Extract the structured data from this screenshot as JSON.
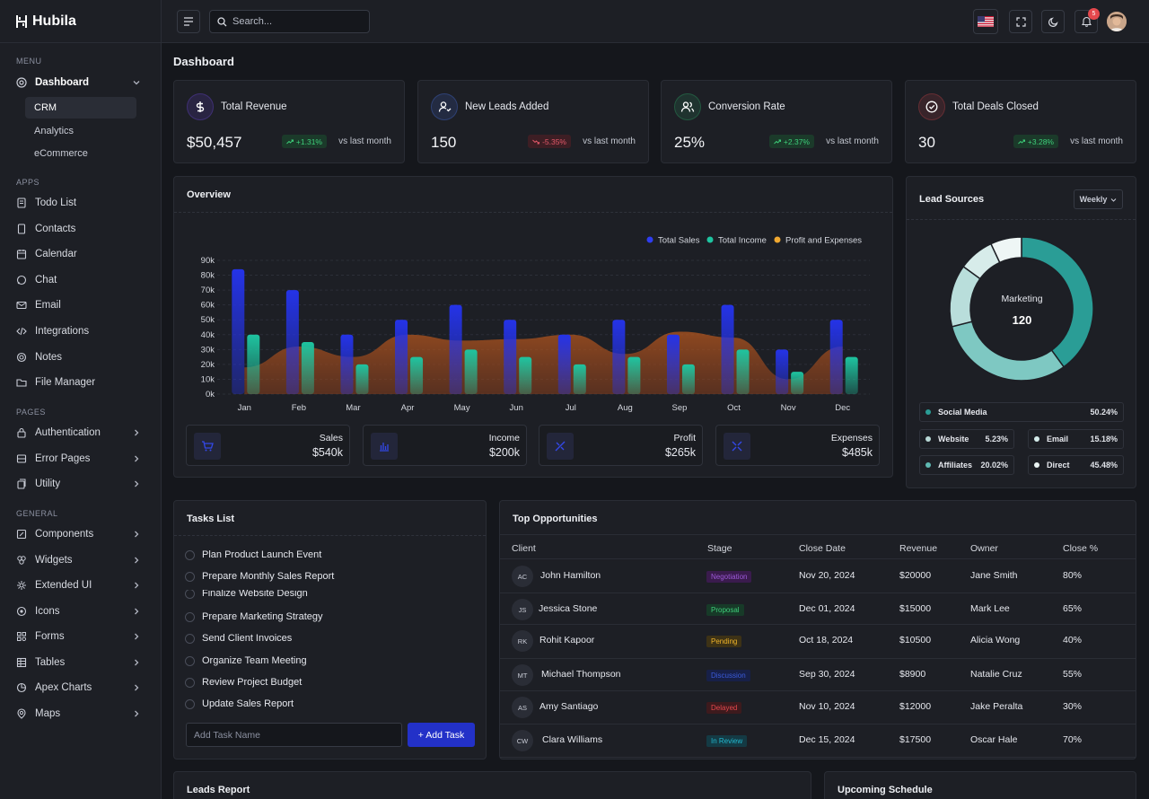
{
  "brand": {
    "name": "Hubila"
  },
  "sidebar": {
    "sections": [
      "MENU",
      "APPS",
      "PAGES",
      "GENERAL"
    ],
    "dashboard": {
      "label": "Dashboard",
      "icon": "dashboard-icon"
    },
    "dashboard_sub": [
      "CRM",
      "Analytics",
      "eCommerce"
    ],
    "apps": [
      {
        "label": "Todo List",
        "icon": "todo-icon"
      },
      {
        "label": "Contacts",
        "icon": "contacts-icon"
      },
      {
        "label": "Calendar",
        "icon": "calendar-icon"
      },
      {
        "label": "Chat",
        "icon": "chat-icon"
      },
      {
        "label": "Email",
        "icon": "email-icon"
      },
      {
        "label": "Integrations",
        "icon": "code-icon"
      },
      {
        "label": "Notes",
        "icon": "notes-icon"
      },
      {
        "label": "File Manager",
        "icon": "folder-icon"
      }
    ],
    "pages": [
      {
        "label": "Authentication",
        "icon": "lock-icon"
      },
      {
        "label": "Error Pages",
        "icon": "error-icon"
      },
      {
        "label": "Utility",
        "icon": "utility-icon"
      }
    ],
    "general": [
      {
        "label": "Components",
        "icon": "components-icon"
      },
      {
        "label": "Widgets",
        "icon": "widgets-icon"
      },
      {
        "label": "Extended UI",
        "icon": "extended-icon"
      },
      {
        "label": "Icons",
        "icon": "icons-icon"
      },
      {
        "label": "Forms",
        "icon": "forms-icon"
      },
      {
        "label": "Tables",
        "icon": "tables-icon"
      },
      {
        "label": "Apex Charts",
        "icon": "charts-icon"
      },
      {
        "label": "Maps",
        "icon": "map-pin-icon"
      }
    ]
  },
  "topbar": {
    "search_placeholder": "Search...",
    "notification_count": "5"
  },
  "page": {
    "title": "Dashboard"
  },
  "stats": [
    {
      "label": "Total Revenue",
      "value": "$50,457",
      "change": "+1.31%",
      "trend": "up",
      "vs": "vs last month",
      "icon": "dollar-icon",
      "color": "#7b4dff"
    },
    {
      "label": "New Leads Added",
      "value": "150",
      "change": "-5.35%",
      "trend": "down",
      "vs": "vs last month",
      "icon": "user-add-icon",
      "color": "#4d7cff"
    },
    {
      "label": "Conversion Rate",
      "value": "25%",
      "change": "+2.37%",
      "trend": "up",
      "vs": "vs last month",
      "icon": "users-icon",
      "color": "#2fbf71"
    },
    {
      "label": "Total Deals Closed",
      "value": "30",
      "change": "+3.28%",
      "trend": "up",
      "vs": "vs last month",
      "icon": "check-circle-icon",
      "color": "#e5484d"
    }
  ],
  "overview": {
    "title": "Overview",
    "summary": [
      {
        "label": "Sales",
        "value": "$540k",
        "icon": "cart-icon"
      },
      {
        "label": "Income",
        "value": "$200k",
        "icon": "bar-chart-icon"
      },
      {
        "label": "Profit",
        "value": "$265k",
        "icon": "profit-icon"
      },
      {
        "label": "Expenses",
        "value": "$485k",
        "icon": "expenses-icon"
      }
    ]
  },
  "chart_data": {
    "type": "bar",
    "title": "Overview",
    "categories": [
      "Jan",
      "Feb",
      "Mar",
      "Apr",
      "May",
      "Jun",
      "Jul",
      "Aug",
      "Sep",
      "Oct",
      "Nov",
      "Dec"
    ],
    "ylim": [
      0,
      90
    ],
    "y_ticks": [
      "0k",
      "10k",
      "20k",
      "30k",
      "40k",
      "50k",
      "60k",
      "70k",
      "80k",
      "90k"
    ],
    "legend_position": "top-right",
    "series": [
      {
        "name": "Total Sales",
        "type": "bar",
        "color": "#2e3df0",
        "values": [
          84,
          70,
          40,
          50,
          60,
          50,
          40,
          50,
          40,
          60,
          30,
          50
        ]
      },
      {
        "name": "Total Income",
        "type": "bar",
        "color": "#1ec4a0",
        "values": [
          40,
          35,
          20,
          25,
          30,
          25,
          20,
          25,
          20,
          30,
          15,
          25
        ]
      },
      {
        "name": "Profit and Expenses",
        "type": "area",
        "color": "#f0a830",
        "values": [
          18,
          32,
          25,
          40,
          36,
          37,
          40,
          27,
          42,
          38,
          10,
          32
        ]
      }
    ]
  },
  "lead_sources": {
    "title": "Lead Sources",
    "period": "Weekly",
    "center_label": "Marketing",
    "center_value": "120",
    "items": [
      {
        "label": "Social Media",
        "pct": "50.24%",
        "color": "#2a9d96"
      },
      {
        "label": "Website",
        "pct": "5.23%",
        "color": "#b9d9d6"
      },
      {
        "label": "Email",
        "pct": "15.18%",
        "color": "#d4ebea"
      },
      {
        "label": "Affiliates",
        "pct": "20.02%",
        "color": "#5fb9b2"
      },
      {
        "label": "Direct",
        "pct": "45.48%",
        "color": "#eaf4f3"
      }
    ]
  },
  "tasks": {
    "title": "Tasks List",
    "items": [
      "Plan Product Launch Event",
      "Prepare Monthly Sales Report",
      "Finalize Website Design",
      "Prepare Marketing Strategy",
      "Send Client Invoices",
      "Organize Team Meeting",
      "Review Project Budget",
      "Update Sales Report"
    ],
    "input_placeholder": "Add Task Name",
    "add_label": "+ Add Task"
  },
  "opportunities": {
    "title": "Top Opportunities",
    "columns": [
      "Client",
      "Stage",
      "Close Date",
      "Revenue",
      "Owner",
      "Close %"
    ],
    "rows": [
      {
        "initials": "AC",
        "client": "John Hamilton",
        "stage": "Negotiation",
        "stage_bg": "#3a1b4d",
        "stage_fg": "#9b59d6",
        "date": "Nov 20, 2024",
        "revenue": "$20000",
        "owner": "Jane Smith",
        "pct": "80%"
      },
      {
        "initials": "JS",
        "client": "Jessica Stone",
        "stage": "Proposal",
        "stage_bg": "#173a28",
        "stage_fg": "#3ecf7a",
        "date": "Dec 01, 2024",
        "revenue": "$15000",
        "owner": "Mark Lee",
        "pct": "65%"
      },
      {
        "initials": "RK",
        "client": "Rohit Kapoor",
        "stage": "Pending",
        "stage_bg": "#3d3216",
        "stage_fg": "#f0b429",
        "date": "Oct 18, 2024",
        "revenue": "$10500",
        "owner": "Alicia Wong",
        "pct": "40%"
      },
      {
        "initials": "MT",
        "client": "Michael Thompson",
        "stage": "Discussion",
        "stage_bg": "#172048",
        "stage_fg": "#3b5bdb",
        "date": "Sep 30, 2024",
        "revenue": "$8900",
        "owner": "Natalie Cruz",
        "pct": "55%"
      },
      {
        "initials": "AS",
        "client": "Amy Santiago",
        "stage": "Delayed",
        "stage_bg": "#3d1a1d",
        "stage_fg": "#e5484d",
        "date": "Nov 10, 2024",
        "revenue": "$12000",
        "owner": "Jake Peralta",
        "pct": "30%"
      },
      {
        "initials": "CW",
        "client": "Clara Williams",
        "stage": "In Review",
        "stage_bg": "#143a44",
        "stage_fg": "#22b8cf",
        "date": "Dec 15, 2024",
        "revenue": "$17500",
        "owner": "Oscar Hale",
        "pct": "70%"
      }
    ]
  },
  "bottom": {
    "leads_report": "Leads Report",
    "upcoming_schedule": "Upcoming Schedule"
  }
}
